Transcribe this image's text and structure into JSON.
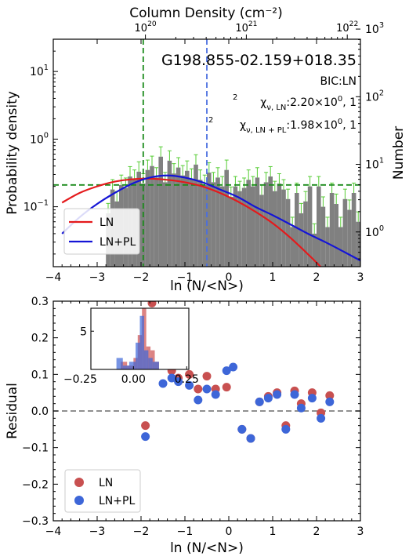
{
  "chart_data": [
    {
      "type": "histogram",
      "title": "G198.855-02.159+018.35",
      "xlabel": "ln (N/<N>)",
      "ylabel_left": "Probability density",
      "ylabel_right": "Number",
      "top_axis_label": "Column Density (cm⁻²)",
      "top_ticks": [
        {
          "text": "10",
          "sup": "20"
        },
        {
          "text": "10",
          "sup": "21"
        },
        {
          "text": "10",
          "sup": "22"
        }
      ],
      "xlim": [
        -4,
        3
      ],
      "ylim_left": [
        0.013,
        30
      ],
      "y_scale": "log",
      "annotations": {
        "bic": "BIC:LN",
        "chi_ln_sym": "χ",
        "chi_ln_sub": "ν, LN",
        "chi_ln_val": ":2.20×10",
        "chi_ln_exp": "0",
        "chi_ln_tail": ", 1",
        "chi_lnpl_sym": "χ",
        "chi_lnpl_sub": "ν, LN + PL",
        "chi_lnpl_val": ":1.98×10",
        "chi_lnpl_exp": "0",
        "chi_lnpl_tail": ", 1"
      },
      "legend": {
        "placement": "lower-left",
        "entries": [
          "LN",
          "LN+PL"
        ]
      },
      "hist_bins": {
        "x_start": -2.8,
        "width": 0.1,
        "values": [
          0.08,
          0.18,
          0.12,
          0.21,
          0.19,
          0.28,
          0.25,
          0.33,
          0.22,
          0.35,
          0.4,
          0.27,
          0.55,
          0.23,
          0.48,
          0.31,
          0.38,
          0.29,
          0.34,
          0.26,
          0.42,
          0.25,
          0.21,
          0.32,
          0.23,
          0.27,
          0.2,
          0.35,
          0.14,
          0.2,
          0.17,
          0.19,
          0.25,
          0.2,
          0.27,
          0.15,
          0.23,
          0.28,
          0.17,
          0.22,
          0.18,
          0.13,
          0.05,
          0.16,
          0.08,
          0.12,
          0.2,
          0.04,
          0.2,
          0.1,
          0.05,
          0.16,
          0.11,
          0.05,
          0.13,
          0.09,
          0.16,
          0.06,
          0.2,
          0.07,
          0.1,
          0.08,
          0.16,
          0.11,
          0.08,
          0.1,
          0.12,
          0.05,
          0.04,
          0.03,
          0.03,
          0.03,
          0.02,
          0.02,
          0.03,
          0.02,
          0.02,
          0.02,
          0.02,
          0.02,
          0.02,
          0.02,
          0.01,
          0.02,
          0.01,
          0.02,
          0.02,
          0.01,
          0.02,
          0.02,
          0.01,
          0.02,
          0.02,
          0.01,
          0.02,
          0.02,
          0.01,
          0.02,
          0.02,
          0.02,
          0.02,
          0.02,
          0.01,
          0.02,
          0.01
        ]
      },
      "series": [
        {
          "name": "LN",
          "color": "#e41a1c",
          "x": [
            -3.8,
            -3.4,
            -3.0,
            -2.6,
            -2.2,
            -1.8,
            -1.4,
            -1.0,
            -0.6,
            -0.2,
            0.2,
            0.6,
            1.0,
            1.4,
            1.8,
            2.2,
            2.6,
            2.85
          ],
          "y": [
            0.115,
            0.16,
            0.2,
            0.235,
            0.255,
            0.26,
            0.25,
            0.23,
            0.2,
            0.16,
            0.12,
            0.085,
            0.057,
            0.035,
            0.02,
            0.011,
            0.0055,
            0.0035
          ]
        },
        {
          "name": "LN+PL",
          "color": "#1515d6",
          "x": [
            -3.8,
            -3.4,
            -3.0,
            -2.6,
            -2.2,
            -1.8,
            -1.4,
            -1.0,
            -0.6,
            -0.2,
            0.2,
            0.6,
            1.0,
            1.4,
            1.8,
            2.2,
            2.6,
            3.0
          ],
          "y": [
            0.04,
            0.07,
            0.11,
            0.16,
            0.22,
            0.27,
            0.29,
            0.27,
            0.23,
            0.18,
            0.14,
            0.1,
            0.075,
            0.055,
            0.04,
            0.03,
            0.022,
            0.016
          ]
        }
      ],
      "vlines": [
        {
          "x": -1.95,
          "color": "#1a8a1a",
          "style": "dashed"
        },
        {
          "x": -0.5,
          "color": "#4a6fe0",
          "style": "dashed"
        }
      ],
      "hline": {
        "y": 0.21,
        "color": "#1a8a1a",
        "style": "dashed"
      },
      "y_ticks_left": [
        {
          "v": 0.1,
          "text": "10",
          "sup": "−1"
        },
        {
          "v": 1,
          "text": "10",
          "sup": "0"
        },
        {
          "v": 10,
          "text": "10",
          "sup": "1"
        }
      ],
      "y_ticks_right": [
        {
          "v": 1,
          "text": "10",
          "sup": "0"
        },
        {
          "v": 10,
          "text": "10",
          "sup": "1"
        },
        {
          "v": 100,
          "text": "10",
          "sup": "2"
        },
        {
          "v": 1000,
          "text": "10",
          "sup": "3"
        }
      ],
      "x_ticks": [
        "−4",
        "−3",
        "−2",
        "−1",
        "0",
        "1",
        "2",
        "3"
      ]
    },
    {
      "type": "scatter",
      "xlabel": "ln (N/<N>)",
      "ylabel": "Residual",
      "xlim": [
        -4,
        3
      ],
      "ylim": [
        -0.3,
        0.3
      ],
      "legend": {
        "placement": "lower-left",
        "entries": [
          "LN",
          "LN+PL"
        ]
      },
      "hline": {
        "y": 0.0,
        "color": "#808080",
        "style": "dashed"
      },
      "x_ticks": [
        "−4",
        "−3",
        "−2",
        "−1",
        "0",
        "1",
        "2",
        "3"
      ],
      "y_ticks": [
        "−0.3",
        "−0.2",
        "−0.1",
        "0.0",
        "0.1",
        "0.2",
        "0.3"
      ],
      "series": [
        {
          "name": "LN",
          "color": "#c85050",
          "points": [
            [
              -1.9,
              -0.04
            ],
            [
              -1.75,
              0.295
            ],
            [
              -1.5,
              0.13
            ],
            [
              -1.3,
              0.11
            ],
            [
              -1.15,
              0.09
            ],
            [
              -0.9,
              0.1
            ],
            [
              -0.7,
              0.06
            ],
            [
              -0.5,
              0.095
            ],
            [
              -0.3,
              0.06
            ],
            [
              -0.05,
              0.065
            ],
            [
              0.3,
              -0.05
            ],
            [
              0.5,
              -0.075
            ],
            [
              0.7,
              0.025
            ],
            [
              0.9,
              0.04
            ],
            [
              1.1,
              0.05
            ],
            [
              1.3,
              -0.04
            ],
            [
              1.5,
              0.055
            ],
            [
              1.65,
              0.02
            ],
            [
              1.9,
              0.05
            ],
            [
              2.1,
              -0.005
            ],
            [
              2.3,
              0.042
            ]
          ]
        },
        {
          "name": "LN+PL",
          "color": "#3d66d8",
          "points": [
            [
              -1.9,
              -0.07
            ],
            [
              -1.5,
              0.075
            ],
            [
              -1.3,
              0.09
            ],
            [
              -1.15,
              0.08
            ],
            [
              -0.9,
              0.07
            ],
            [
              -0.7,
              0.03
            ],
            [
              -0.5,
              0.06
            ],
            [
              -0.3,
              0.045
            ],
            [
              -0.05,
              0.11
            ],
            [
              0.1,
              0.12
            ],
            [
              0.3,
              -0.05
            ],
            [
              0.5,
              -0.075
            ],
            [
              0.7,
              0.025
            ],
            [
              0.9,
              0.035
            ],
            [
              1.1,
              0.045
            ],
            [
              1.3,
              -0.05
            ],
            [
              1.5,
              0.045
            ],
            [
              1.65,
              0.008
            ],
            [
              1.9,
              0.035
            ],
            [
              2.1,
              -0.02
            ],
            [
              2.3,
              0.025
            ]
          ]
        }
      ],
      "inset": {
        "type": "histogram",
        "x_ticks": [
          "−0.25",
          "0.00",
          "0.25"
        ],
        "y_ticks": [
          "5"
        ],
        "xlim": [
          -0.2,
          0.26
        ],
        "ylim": [
          0,
          8
        ],
        "series": [
          {
            "name": "LN",
            "color": "#d05a5a",
            "bins": [
              [
                -0.06,
                -0.03,
                1.0
              ],
              [
                -0.03,
                0.0,
                0.5
              ],
              [
                0.0,
                0.02,
                1.5
              ],
              [
                0.02,
                0.04,
                4.5
              ],
              [
                0.04,
                0.06,
                8.5
              ],
              [
                0.06,
                0.08,
                3.0
              ],
              [
                0.08,
                0.1,
                2.5
              ],
              [
                0.1,
                0.12,
                1.0
              ]
            ]
          },
          {
            "name": "LN+PL",
            "color": "#3d66d8",
            "bins": [
              [
                -0.08,
                -0.05,
                1.5
              ],
              [
                -0.05,
                -0.02,
                0.5
              ],
              [
                -0.02,
                0.01,
                1.0
              ],
              [
                0.01,
                0.03,
                3.5
              ],
              [
                0.03,
                0.05,
                7.0
              ],
              [
                0.05,
                0.07,
                2.5
              ],
              [
                0.07,
                0.09,
                1.5
              ],
              [
                0.09,
                0.12,
                1.0
              ]
            ]
          }
        ]
      }
    }
  ]
}
